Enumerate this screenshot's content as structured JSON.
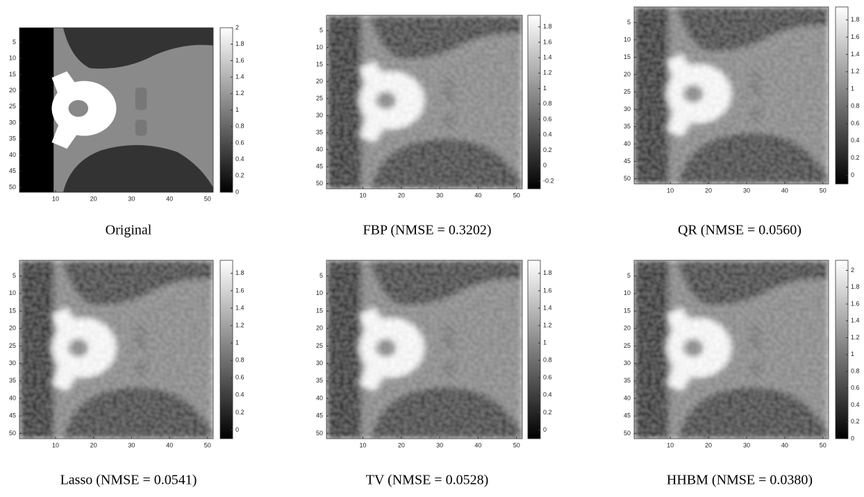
{
  "figure": {
    "axes": {
      "xlim": [
        0.5,
        51.5
      ],
      "ylim": [
        0.5,
        51.5
      ],
      "xticks": [
        10,
        20,
        30,
        40,
        50
      ],
      "yticks": [
        5,
        10,
        15,
        20,
        25,
        30,
        35,
        40,
        45,
        50
      ]
    },
    "panels": [
      {
        "caption": "Original",
        "clim": [
          0,
          2
        ],
        "cticks": [
          0,
          0.2,
          0.4,
          0.6,
          0.8,
          1,
          1.2,
          1.4,
          1.6,
          1.8,
          2
        ]
      },
      {
        "caption": "FBP (NMSE = 0.3202)",
        "clim": [
          -0.3,
          1.95
        ],
        "cticks": [
          -0.2,
          0,
          0.2,
          0.4,
          0.6,
          0.8,
          1,
          1.2,
          1.4,
          1.6,
          1.8
        ]
      },
      {
        "caption": "QR (NMSE = 0.0560)",
        "clim": [
          -0.1,
          1.95
        ],
        "cticks": [
          0,
          0.2,
          0.4,
          0.6,
          0.8,
          1,
          1.2,
          1.4,
          1.6,
          1.8
        ]
      },
      {
        "caption": "Lasso (NMSE = 0.0541)",
        "clim": [
          -0.1,
          1.95
        ],
        "cticks": [
          0,
          0.2,
          0.4,
          0.6,
          0.8,
          1,
          1.2,
          1.4,
          1.6,
          1.8
        ]
      },
      {
        "caption": "TV (NMSE = 0.0528)",
        "clim": [
          -0.1,
          1.95
        ],
        "cticks": [
          0,
          0.2,
          0.4,
          0.6,
          0.8,
          1,
          1.2,
          1.4,
          1.6,
          1.8
        ]
      },
      {
        "caption": "HHBM (NMSE = 0.0380)",
        "clim": [
          0,
          2.12
        ],
        "cticks": [
          0,
          0.2,
          0.4,
          0.6,
          0.8,
          1,
          1.2,
          1.4,
          1.6,
          1.8,
          2
        ]
      }
    ]
  }
}
